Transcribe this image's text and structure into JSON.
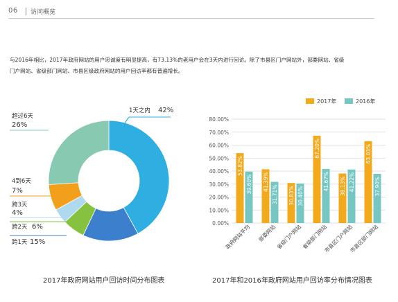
{
  "header": {
    "page_number": "06",
    "section_title": "访问概览"
  },
  "intro": {
    "line1": "与2016年相比，2017年政府网站的用户忠诚度有明显提高，有73.13%的老用户会在3天内进行回访。除了市县区门户网站外，部委网站、省级",
    "line2": "门户网站、省级部门网站、市县区级政府网站的用户回访率都有普遍增长。"
  },
  "colors": {
    "y2017": "#f2a91c",
    "y2016": "#76c7c4",
    "donut": [
      "#2eaee1",
      "#3c7fcd",
      "#86c140",
      "#aed9ee",
      "#1f9fd8",
      "#f2a01c",
      "#88c9b2"
    ]
  },
  "captions": {
    "donut": "2017年政府网站用户回访时间分布图表",
    "bars": "2017年和2016年政府网站用户回访率分布情况图表"
  },
  "chart_data": [
    {
      "type": "pie",
      "title": "2017年政府网站用户回访时间分布图表",
      "slices": [
        {
          "label": "1天之内",
          "value": 42,
          "display": "42%",
          "color": "#2eaee1"
        },
        {
          "label": "跨1天",
          "value": 15,
          "display": "15%",
          "color": "#3c7fcd"
        },
        {
          "label": "跨2天",
          "value": 6,
          "display": "6%",
          "color": "#86c140"
        },
        {
          "label": "跨3天",
          "value": 4,
          "display": "4%",
          "color": "#aed9ee"
        },
        {
          "label": "4到6天",
          "value": 7,
          "display": "7%",
          "color": "#f2a01c"
        },
        {
          "label": "超过6天",
          "value": 26,
          "display": "26%",
          "color": "#88c9b2"
        }
      ]
    },
    {
      "type": "bar",
      "title": "2017年和2016年政府网站用户回访率分布情况图表",
      "categories": [
        "政府网站平均",
        "部委网站",
        "省级门户网站",
        "省级部门网站",
        "市县区门户网站",
        "市县区部门网站"
      ],
      "series": [
        {
          "name": "2017年",
          "values": [
            53.82,
            41.39,
            30.83,
            67.2,
            38.13,
            63.03
          ],
          "labels": [
            "53.82%",
            "41.39%",
            "30.83%",
            "67.20%",
            "38.13%",
            "63.03%"
          ]
        },
        {
          "name": "2016年",
          "values": [
            39.6,
            31.71,
            30.4,
            41.67,
            41.22,
            37.9
          ],
          "labels": [
            "39.60%",
            "31.71%",
            "30.40%",
            "41.67%",
            "41.22%",
            "37.90%"
          ]
        }
      ],
      "yticks": [
        "0.00%",
        "10.00%",
        "20.00%",
        "30.00%",
        "40.00%",
        "50.00%",
        "60.00%",
        "70.00%",
        "80.00%"
      ],
      "ylim": [
        0,
        80
      ],
      "legend_position": "top-right"
    }
  ]
}
